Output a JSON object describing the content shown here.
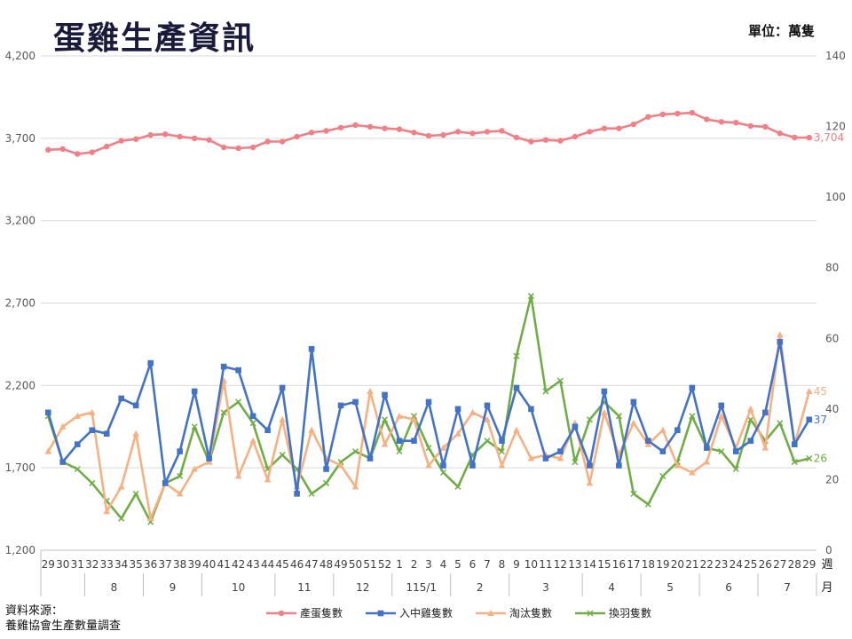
{
  "title": "蛋雞生產資訊",
  "unit": "單位：萬隻",
  "source": {
    "line1": "資料來源：",
    "line2": "養雞協會生產數量調查"
  },
  "chart_data": {
    "type": "line",
    "x": [
      "29",
      "30",
      "31",
      "32",
      "33",
      "34",
      "35",
      "36",
      "37",
      "38",
      "39",
      "40",
      "41",
      "42",
      "43",
      "44",
      "45",
      "46",
      "47",
      "48",
      "49",
      "50",
      "51",
      "52",
      "1",
      "2",
      "3",
      "4",
      "5",
      "6",
      "7",
      "8",
      "9",
      "10",
      "11",
      "12",
      "13",
      "14",
      "15",
      "16",
      "17",
      "18",
      "19",
      "20",
      "21",
      "22",
      "23",
      "24",
      "25",
      "26",
      "27",
      "28",
      "29"
    ],
    "month_groups": [
      {
        "label": "",
        "from": 0,
        "to": 2
      },
      {
        "label": "8",
        "from": 3,
        "to": 6
      },
      {
        "label": "9",
        "from": 7,
        "to": 10
      },
      {
        "label": "10",
        "from": 11,
        "to": 15
      },
      {
        "label": "11",
        "from": 16,
        "to": 19
      },
      {
        "label": "12",
        "from": 20,
        "to": 23
      },
      {
        "label": "115/1",
        "from": 24,
        "to": 27
      },
      {
        "label": "2",
        "from": 28,
        "to": 31
      },
      {
        "label": "3",
        "from": 32,
        "to": 36
      },
      {
        "label": "4",
        "from": 37,
        "to": 40
      },
      {
        "label": "5",
        "from": 41,
        "to": 44
      },
      {
        "label": "6",
        "from": 45,
        "to": 48
      },
      {
        "label": "7",
        "from": 49,
        "to": 52
      }
    ],
    "x_axis_label_week": "週",
    "x_axis_label_month": "月",
    "y_left_ticks": [
      "1,200",
      "1,700",
      "2,200",
      "2,700",
      "3,200",
      "3,700",
      "4,200"
    ],
    "y_right_ticks": [
      "0",
      "20",
      "40",
      "60",
      "80",
      "100",
      "120",
      "140"
    ],
    "ylim_left": [
      1200,
      4200
    ],
    "ylim_right": [
      0,
      140
    ],
    "series": [
      {
        "name": "產蛋隻數",
        "axis": "left",
        "color": "#f07f86",
        "marker": "circle",
        "end_label": "3,704",
        "values": [
          3630,
          3635,
          3605,
          3615,
          3650,
          3685,
          3695,
          3720,
          3725,
          3710,
          3700,
          3690,
          3645,
          3640,
          3645,
          3680,
          3680,
          3710,
          3735,
          3745,
          3765,
          3780,
          3770,
          3760,
          3755,
          3735,
          3715,
          3720,
          3740,
          3730,
          3740,
          3745,
          3705,
          3680,
          3690,
          3685,
          3710,
          3740,
          3760,
          3760,
          3785,
          3830,
          3845,
          3850,
          3855,
          3815,
          3800,
          3795,
          3775,
          3770,
          3730,
          3705,
          3704
        ]
      },
      {
        "name": "入中雞隻數",
        "axis": "right",
        "color": "#4472c4",
        "marker": "square",
        "end_label": "37",
        "values": [
          39,
          25,
          30,
          34,
          33,
          43,
          41,
          53,
          19,
          28,
          45,
          26,
          52,
          51,
          38,
          34,
          46,
          16,
          57,
          23,
          41,
          42,
          26,
          44,
          31,
          31,
          42,
          24,
          40,
          24,
          41,
          31,
          46,
          40,
          26,
          28,
          35,
          24,
          45,
          24,
          42,
          31,
          28,
          34,
          46,
          29,
          41,
          28,
          31,
          39,
          59,
          30,
          37
        ]
      },
      {
        "name": "淘汰隻數",
        "axis": "right",
        "color": "#f4b183",
        "marker": "triangle",
        "end_label": "45",
        "values": [
          28,
          35,
          38,
          39,
          11,
          18,
          33,
          9,
          19,
          16,
          23,
          25,
          48,
          21,
          31,
          20,
          37,
          18,
          34,
          26,
          24,
          18,
          45,
          30,
          38,
          37,
          24,
          29,
          33,
          39,
          37,
          24,
          34,
          26,
          27,
          26,
          36,
          19,
          39,
          27,
          36,
          30,
          34,
          24,
          22,
          25,
          38,
          29,
          40,
          29,
          61,
          30,
          45
        ]
      },
      {
        "name": "換羽隻數",
        "axis": "right",
        "color": "#70ad47",
        "marker": "x",
        "end_label": "26",
        "values": [
          38,
          25,
          23,
          19,
          14,
          9,
          16,
          8,
          19,
          21,
          35,
          25,
          39,
          42,
          36,
          23,
          27,
          23,
          16,
          19,
          25,
          28,
          26,
          37,
          28,
          38,
          29,
          22,
          18,
          27,
          31,
          28,
          55,
          72,
          45,
          48,
          25,
          37,
          42,
          38,
          16,
          13,
          21,
          25,
          38,
          29,
          28,
          23,
          37,
          31,
          36,
          25,
          26
        ]
      }
    ]
  }
}
